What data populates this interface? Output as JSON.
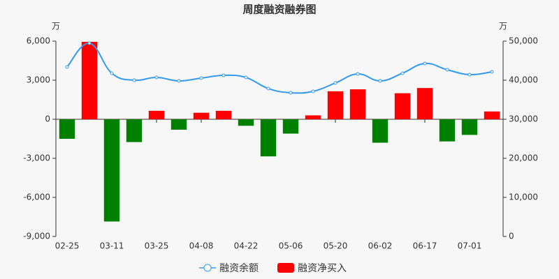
{
  "chart_data": {
    "type": "bar_line",
    "title": "周度融资融券图",
    "y_unit": "万",
    "y2_unit": "万",
    "categories": [
      "02-25",
      null,
      "03-11",
      null,
      "03-25",
      null,
      "04-08",
      null,
      "04-22",
      null,
      "05-06",
      null,
      "05-20",
      null,
      "06-02",
      null,
      "06-17",
      null,
      "07-01",
      null
    ],
    "series": [
      {
        "name": "融资余额",
        "type": "line",
        "axis": "y2",
        "color": "#3399ee",
        "values": [
          43390,
          49460,
          41790,
          40000,
          40710,
          39820,
          40540,
          41250,
          40710,
          37860,
          36790,
          37140,
          39290,
          41610,
          39820,
          41790,
          44290,
          42680,
          41430,
          42140
        ]
      },
      {
        "name": "融资净买入",
        "type": "bar",
        "color": "#ff0000",
        "negative_color": "#008000",
        "values": [
          -1500,
          5950,
          -7850,
          -1750,
          650,
          -800,
          500,
          650,
          -500,
          -2850,
          -1100,
          300,
          2150,
          2300,
          -1800,
          2000,
          2400,
          -1700,
          -1200,
          600
        ]
      }
    ],
    "ylim": [
      -9000,
      6000
    ],
    "yticks": [
      {
        "value": -9000,
        "label": "-9,000"
      },
      {
        "value": -6000,
        "label": "-6,000"
      },
      {
        "value": -3000,
        "label": "-3,000"
      },
      0,
      {
        "value": 3000,
        "label": "3,000"
      },
      {
        "value": 6000,
        "label": "6,000"
      }
    ],
    "y2lim": [
      0,
      50000
    ],
    "y2ticks": [
      0,
      {
        "value": 10000,
        "label": "10,000"
      },
      {
        "value": 20000,
        "label": "20,000"
      },
      {
        "value": 30000,
        "label": "30,000"
      },
      {
        "value": 40000,
        "label": "40,000"
      },
      {
        "value": 50000,
        "label": "50,000"
      }
    ]
  }
}
